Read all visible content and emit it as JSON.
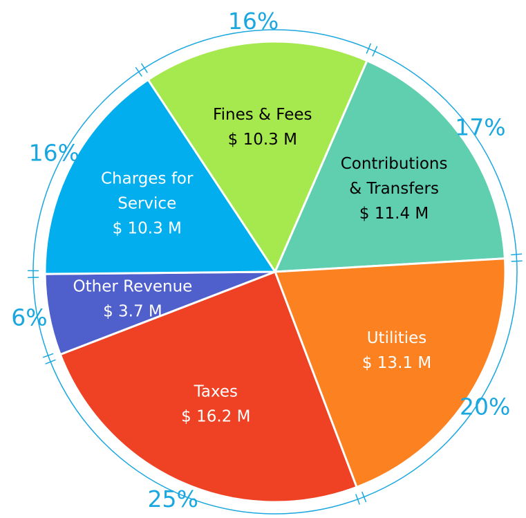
{
  "chart_data": {
    "type": "pie",
    "categories": [
      [
        "Fines & Fees"
      ],
      [
        "Contributions",
        "& Transfers"
      ],
      [
        "Utilities"
      ],
      [
        "Taxes"
      ],
      [
        "Other Revenue"
      ],
      [
        "Charges for",
        "Service"
      ]
    ],
    "values": [
      10.3,
      11.4,
      13.1,
      16.2,
      3.7,
      10.3
    ],
    "value_labels": [
      "$ 10.3 M",
      "$ 11.4 M",
      "$ 13.1 M",
      "$ 16.2 M",
      "$ 3.7 M",
      "$ 10.3 M"
    ],
    "percent_labels": [
      "16%",
      "17%",
      "20%",
      "25%",
      "6%",
      "16%"
    ],
    "colors": [
      "#a6e94f",
      "#5fcfb0",
      "#fc8121",
      "#ef4124",
      "#4f5fcc",
      "#02aeed"
    ],
    "label_colors": [
      "#000000",
      "#000000",
      "#ffffff",
      "#ffffff",
      "#ffffff",
      "#ffffff"
    ],
    "percent_color": "#1aa7e0"
  }
}
